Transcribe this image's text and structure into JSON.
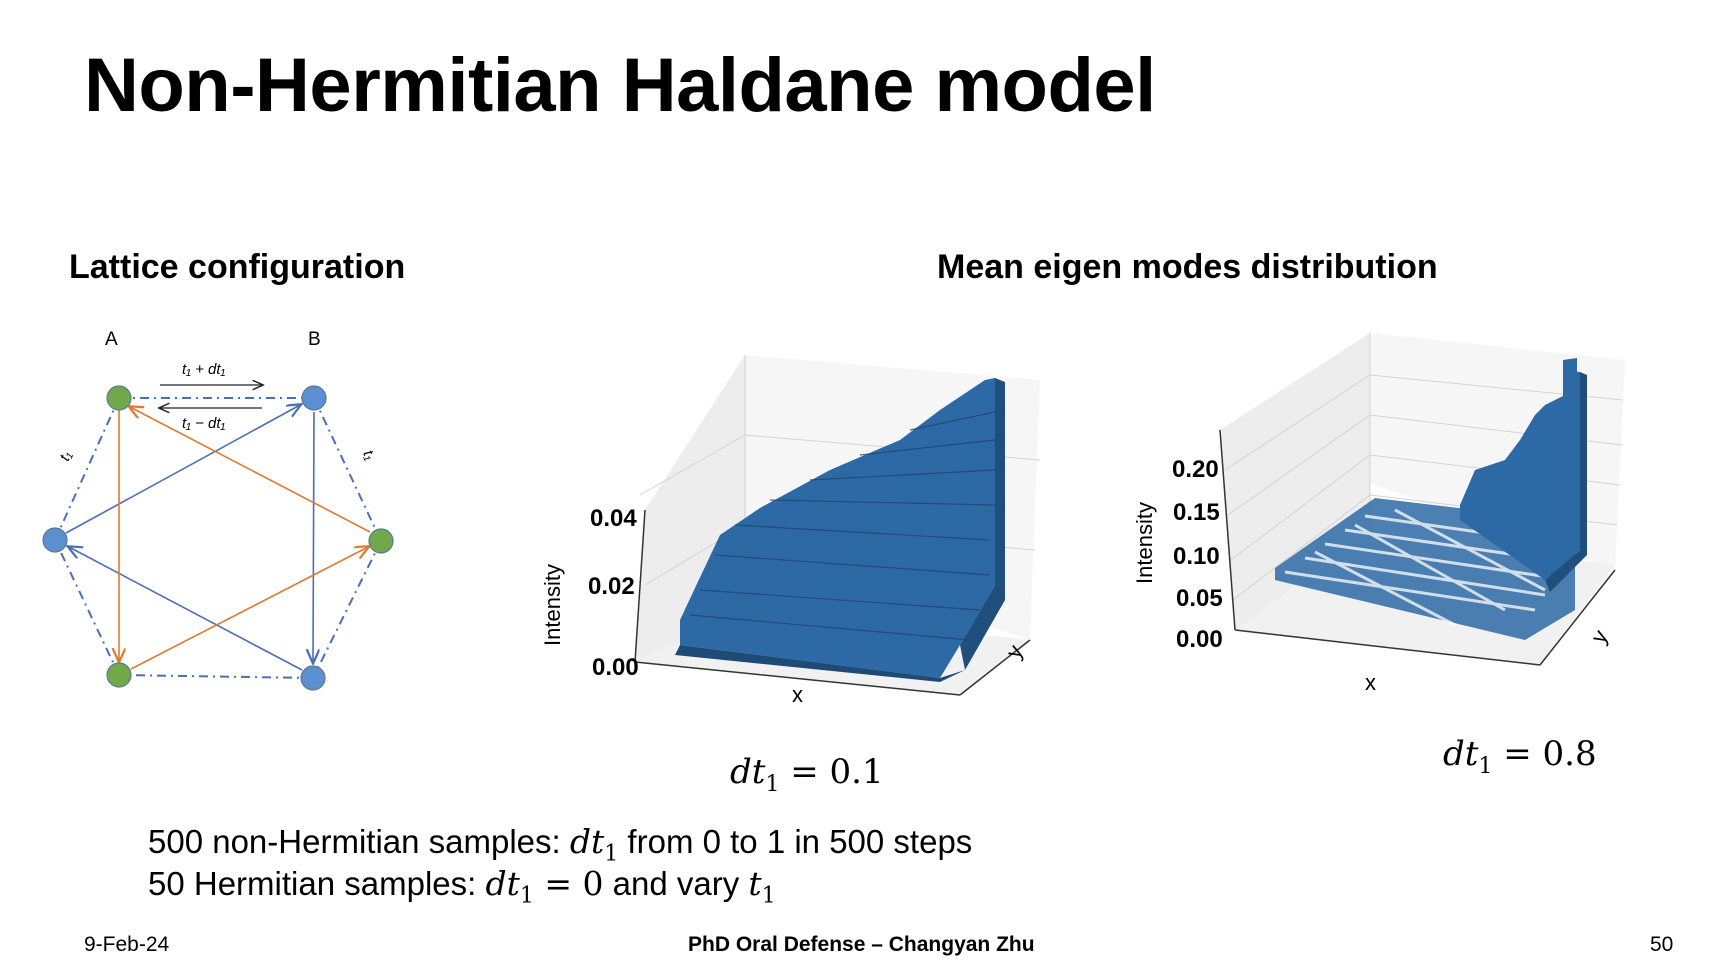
{
  "slide": {
    "title": "Non-Hermitian Haldane model",
    "left_heading": "Lattice configuration",
    "right_heading": "Mean eigen modes distribution"
  },
  "lattice": {
    "label_a": "A",
    "label_b": "B",
    "hop_forward": "t₁ + dt₁",
    "hop_backward": "t₁ − dt₁",
    "side_left": "t₁",
    "side_right": "t₁",
    "colors": {
      "green": "#70a84a",
      "blue": "#5b8fd0",
      "orange": "#e07b30",
      "link": "#4a6fb3"
    }
  },
  "plots": [
    {
      "zlabel": "Intensity",
      "xlabel": "x",
      "ylabel": "y",
      "ticks": [
        "0.00",
        "0.02",
        "0.04"
      ],
      "caption_var": "dt",
      "caption_sub": "1",
      "caption_val": " = 0.1"
    },
    {
      "zlabel": "Intensity",
      "xlabel": "x",
      "ylabel": "y",
      "ticks": [
        "0.00",
        "0.05",
        "0.10",
        "0.15",
        "0.20"
      ],
      "caption_var": "dt",
      "caption_sub": "1",
      "caption_val": " = 0.8"
    }
  ],
  "notes": {
    "line1_pre": "500 non-Hermitian samples: ",
    "line1_var": "dt",
    "line1_sub": "1",
    "line1_post": " from 0 to 1 in 500 steps",
    "line2_pre": "50  Hermitian samples: ",
    "line2_var": "dt",
    "line2_sub": "1",
    "line2_eq": " = 0",
    "line2_mid": " and vary ",
    "line2_var2": "t",
    "line2_sub2": "1"
  },
  "footer": {
    "date": "9-Feb-24",
    "center": "PhD Oral Defense – Changyan Zhu",
    "page": "50"
  }
}
